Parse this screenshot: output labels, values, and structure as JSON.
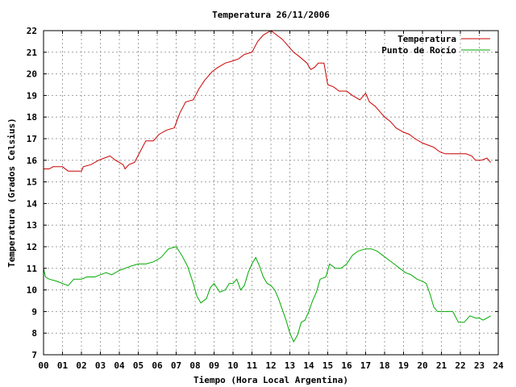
{
  "chart_data": {
    "type": "line",
    "title": "Temperatura 26/11/2006",
    "xlabel": "Tiempo (Hora Local Argentina)",
    "ylabel": "Temperatura (Grados Celsius)",
    "xlim": [
      0,
      24
    ],
    "ylim": [
      7,
      22
    ],
    "x_ticks": [
      "00",
      "01",
      "02",
      "03",
      "04",
      "05",
      "06",
      "07",
      "08",
      "09",
      "10",
      "11",
      "12",
      "13",
      "14",
      "15",
      "16",
      "17",
      "18",
      "19",
      "20",
      "21",
      "22",
      "23",
      "24"
    ],
    "y_ticks": [
      "7",
      "8",
      "9",
      "10",
      "11",
      "12",
      "13",
      "14",
      "15",
      "16",
      "17",
      "18",
      "19",
      "20",
      "21",
      "22"
    ],
    "grid": true,
    "legend_position": "top-right",
    "series": [
      {
        "name": "Temperatura",
        "color": "#cc0000",
        "points": [
          [
            0.0,
            15.6
          ],
          [
            0.3,
            15.6
          ],
          [
            0.5,
            15.7
          ],
          [
            1.0,
            15.7
          ],
          [
            1.3,
            15.5
          ],
          [
            1.6,
            15.5
          ],
          [
            2.0,
            15.5
          ],
          [
            2.1,
            15.7
          ],
          [
            2.5,
            15.8
          ],
          [
            2.9,
            16.0
          ],
          [
            3.2,
            16.1
          ],
          [
            3.5,
            16.2
          ],
          [
            3.8,
            16.0
          ],
          [
            4.2,
            15.8
          ],
          [
            4.3,
            15.6
          ],
          [
            4.5,
            15.8
          ],
          [
            4.8,
            15.9
          ],
          [
            5.1,
            16.4
          ],
          [
            5.4,
            16.9
          ],
          [
            5.8,
            16.9
          ],
          [
            6.1,
            17.2
          ],
          [
            6.5,
            17.4
          ],
          [
            6.9,
            17.5
          ],
          [
            7.2,
            18.2
          ],
          [
            7.5,
            18.7
          ],
          [
            7.9,
            18.8
          ],
          [
            8.2,
            19.3
          ],
          [
            8.5,
            19.7
          ],
          [
            8.9,
            20.1
          ],
          [
            9.2,
            20.3
          ],
          [
            9.6,
            20.5
          ],
          [
            10.0,
            20.6
          ],
          [
            10.3,
            20.7
          ],
          [
            10.6,
            20.9
          ],
          [
            11.0,
            21.0
          ],
          [
            11.3,
            21.5
          ],
          [
            11.6,
            21.8
          ],
          [
            12.0,
            22.0
          ],
          [
            12.3,
            21.8
          ],
          [
            12.6,
            21.6
          ],
          [
            13.0,
            21.2
          ],
          [
            13.2,
            21.0
          ],
          [
            13.5,
            20.8
          ],
          [
            13.9,
            20.5
          ],
          [
            14.1,
            20.2
          ],
          [
            14.3,
            20.3
          ],
          [
            14.5,
            20.5
          ],
          [
            14.8,
            20.5
          ],
          [
            15.0,
            19.5
          ],
          [
            15.3,
            19.4
          ],
          [
            15.6,
            19.2
          ],
          [
            16.0,
            19.2
          ],
          [
            16.3,
            19.0
          ],
          [
            16.7,
            18.8
          ],
          [
            17.0,
            19.1
          ],
          [
            17.2,
            18.7
          ],
          [
            17.5,
            18.5
          ],
          [
            17.8,
            18.2
          ],
          [
            18.0,
            18.0
          ],
          [
            18.3,
            17.8
          ],
          [
            18.6,
            17.5
          ],
          [
            19.0,
            17.3
          ],
          [
            19.3,
            17.2
          ],
          [
            19.6,
            17.0
          ],
          [
            20.0,
            16.8
          ],
          [
            20.3,
            16.7
          ],
          [
            20.6,
            16.6
          ],
          [
            20.9,
            16.4
          ],
          [
            21.2,
            16.3
          ],
          [
            21.6,
            16.3
          ],
          [
            22.0,
            16.3
          ],
          [
            22.3,
            16.3
          ],
          [
            22.6,
            16.2
          ],
          [
            22.8,
            16.0
          ],
          [
            23.1,
            16.0
          ],
          [
            23.4,
            16.1
          ],
          [
            23.6,
            15.9
          ]
        ]
      },
      {
        "name": "Punto de Rocío",
        "color": "#00aa00",
        "points": [
          [
            0.0,
            11.0
          ],
          [
            0.1,
            10.6
          ],
          [
            0.3,
            10.5
          ],
          [
            0.7,
            10.4
          ],
          [
            1.0,
            10.3
          ],
          [
            1.3,
            10.2
          ],
          [
            1.6,
            10.5
          ],
          [
            2.0,
            10.5
          ],
          [
            2.3,
            10.6
          ],
          [
            2.7,
            10.6
          ],
          [
            3.0,
            10.7
          ],
          [
            3.3,
            10.8
          ],
          [
            3.6,
            10.7
          ],
          [
            4.0,
            10.9
          ],
          [
            4.3,
            11.0
          ],
          [
            4.6,
            11.1
          ],
          [
            5.0,
            11.2
          ],
          [
            5.4,
            11.2
          ],
          [
            5.8,
            11.3
          ],
          [
            6.2,
            11.5
          ],
          [
            6.6,
            11.9
          ],
          [
            7.0,
            12.0
          ],
          [
            7.3,
            11.6
          ],
          [
            7.6,
            11.1
          ],
          [
            7.9,
            10.3
          ],
          [
            8.1,
            9.7
          ],
          [
            8.3,
            9.4
          ],
          [
            8.6,
            9.6
          ],
          [
            8.8,
            10.1
          ],
          [
            9.0,
            10.3
          ],
          [
            9.3,
            9.9
          ],
          [
            9.6,
            10.0
          ],
          [
            9.8,
            10.3
          ],
          [
            10.0,
            10.3
          ],
          [
            10.2,
            10.5
          ],
          [
            10.4,
            10.0
          ],
          [
            10.6,
            10.2
          ],
          [
            10.8,
            10.8
          ],
          [
            11.0,
            11.2
          ],
          [
            11.2,
            11.5
          ],
          [
            11.4,
            11.1
          ],
          [
            11.6,
            10.6
          ],
          [
            11.8,
            10.3
          ],
          [
            12.0,
            10.2
          ],
          [
            12.2,
            10.0
          ],
          [
            12.4,
            9.6
          ],
          [
            12.6,
            9.1
          ],
          [
            12.8,
            8.6
          ],
          [
            13.0,
            8.0
          ],
          [
            13.2,
            7.6
          ],
          [
            13.4,
            7.9
          ],
          [
            13.6,
            8.5
          ],
          [
            13.8,
            8.6
          ],
          [
            14.0,
            9.0
          ],
          [
            14.2,
            9.5
          ],
          [
            14.4,
            9.9
          ],
          [
            14.6,
            10.5
          ],
          [
            14.9,
            10.6
          ],
          [
            15.1,
            11.2
          ],
          [
            15.4,
            11.0
          ],
          [
            15.7,
            11.0
          ],
          [
            16.0,
            11.2
          ],
          [
            16.3,
            11.6
          ],
          [
            16.6,
            11.8
          ],
          [
            17.0,
            11.9
          ],
          [
            17.3,
            11.9
          ],
          [
            17.6,
            11.8
          ],
          [
            17.9,
            11.6
          ],
          [
            18.2,
            11.4
          ],
          [
            18.5,
            11.2
          ],
          [
            18.8,
            11.0
          ],
          [
            19.1,
            10.8
          ],
          [
            19.4,
            10.7
          ],
          [
            19.7,
            10.5
          ],
          [
            20.0,
            10.4
          ],
          [
            20.2,
            10.3
          ],
          [
            20.4,
            9.8
          ],
          [
            20.6,
            9.2
          ],
          [
            20.8,
            9.0
          ],
          [
            21.2,
            9.0
          ],
          [
            21.6,
            9.0
          ],
          [
            21.9,
            8.5
          ],
          [
            22.2,
            8.5
          ],
          [
            22.5,
            8.8
          ],
          [
            22.8,
            8.7
          ],
          [
            23.0,
            8.7
          ],
          [
            23.2,
            8.6
          ],
          [
            23.4,
            8.7
          ],
          [
            23.6,
            8.8
          ]
        ]
      }
    ]
  }
}
